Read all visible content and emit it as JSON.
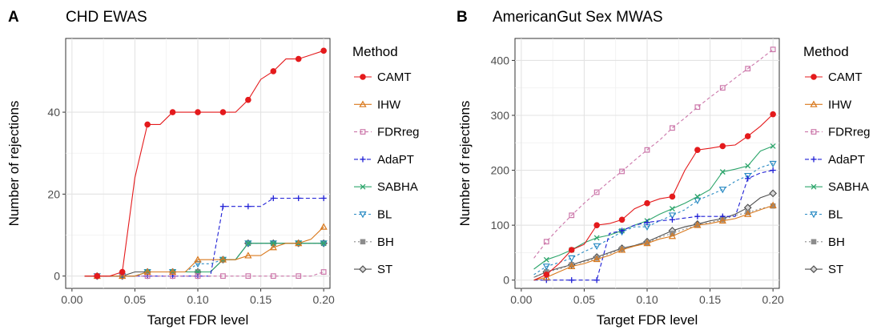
{
  "colors": {
    "CAMT": "#e41a1c",
    "IHW": "#d9791d",
    "FDRreg": "#cc77aa",
    "AdaPT": "#1f1fd6",
    "SABHA": "#2ea66c",
    "BL": "#2b8cc4",
    "BH": "#8c8c8c",
    "ST": "#505050"
  },
  "chart_data": [
    {
      "panel_letter": "A",
      "type": "line",
      "title": "CHD EWAS",
      "xlabel": "Target FDR level",
      "ylabel": "Number of rejections",
      "xlim": [
        -0.005,
        0.205
      ],
      "ylim": [
        -3,
        58
      ],
      "xticks": [
        "0.00",
        "0.05",
        "0.10",
        "0.15",
        "0.20"
      ],
      "xtick_values": [
        0,
        0.05,
        0.1,
        0.15,
        0.2
      ],
      "yticks": [
        "0",
        "20",
        "40"
      ],
      "ytick_values": [
        0,
        20,
        40
      ],
      "grid": true,
      "legend_title": "Method",
      "legend_position": "right",
      "series": [
        {
          "name": "CAMT",
          "marker": "circle",
          "dash": "",
          "x": [
            0.01,
            0.02,
            0.03,
            0.04,
            0.05,
            0.06,
            0.07,
            0.08,
            0.09,
            0.1,
            0.11,
            0.12,
            0.13,
            0.14,
            0.15,
            0.16,
            0.17,
            0.18,
            0.19,
            0.2
          ],
          "y": [
            0,
            0,
            0,
            1,
            24,
            37,
            37,
            40,
            40,
            40,
            40,
            40,
            40,
            43,
            48,
            50,
            53,
            53,
            54,
            55
          ]
        },
        {
          "name": "IHW",
          "marker": "triangle-up",
          "dash": "",
          "x": [
            0.01,
            0.02,
            0.03,
            0.04,
            0.05,
            0.06,
            0.07,
            0.08,
            0.09,
            0.1,
            0.11,
            0.12,
            0.13,
            0.14,
            0.15,
            0.16,
            0.17,
            0.18,
            0.19,
            0.2
          ],
          "y": [
            0,
            0,
            0,
            0,
            0,
            1,
            1,
            1,
            1,
            4,
            4,
            4,
            4,
            5,
            5,
            7,
            8,
            8,
            9,
            12
          ]
        },
        {
          "name": "FDRreg",
          "marker": "square-open",
          "dash": "4,3",
          "x": [
            0.01,
            0.02,
            0.03,
            0.04,
            0.05,
            0.06,
            0.07,
            0.08,
            0.09,
            0.1,
            0.11,
            0.12,
            0.13,
            0.14,
            0.15,
            0.16,
            0.17,
            0.18,
            0.19,
            0.2
          ],
          "y": [
            0,
            0,
            0,
            0,
            0,
            0,
            0,
            0,
            0,
            0,
            0,
            0,
            0,
            0,
            0,
            0,
            0,
            0,
            0,
            1
          ]
        },
        {
          "name": "AdaPT",
          "marker": "plus",
          "dash": "5,3",
          "x": [
            0.01,
            0.02,
            0.03,
            0.04,
            0.05,
            0.06,
            0.07,
            0.08,
            0.09,
            0.1,
            0.11,
            0.12,
            0.13,
            0.14,
            0.15,
            0.16,
            0.17,
            0.18,
            0.19,
            0.2
          ],
          "y": [
            0,
            0,
            0,
            0,
            0,
            0,
            0,
            0,
            0,
            0,
            0,
            17,
            17,
            17,
            17,
            19,
            19,
            19,
            19,
            19
          ]
        },
        {
          "name": "SABHA",
          "marker": "x",
          "dash": "",
          "x": [
            0.01,
            0.02,
            0.03,
            0.04,
            0.05,
            0.06,
            0.07,
            0.08,
            0.09,
            0.1,
            0.11,
            0.12,
            0.13,
            0.14,
            0.15,
            0.16,
            0.17,
            0.18,
            0.19,
            0.2
          ],
          "y": [
            0,
            0,
            0,
            0,
            0,
            1,
            1,
            1,
            1,
            1,
            1,
            4,
            4,
            8,
            8,
            8,
            8,
            8,
            8,
            8
          ]
        },
        {
          "name": "BL",
          "marker": "triangle-down",
          "dash": "3,3",
          "x": [
            0.01,
            0.02,
            0.03,
            0.04,
            0.05,
            0.06,
            0.07,
            0.08,
            0.09,
            0.1,
            0.11,
            0.12,
            0.13,
            0.14,
            0.15,
            0.16,
            0.17,
            0.18,
            0.19,
            0.2
          ],
          "y": [
            0,
            0,
            0,
            0,
            0,
            1,
            1,
            1,
            1,
            3,
            3,
            4,
            4,
            8,
            8,
            8,
            8,
            8,
            8,
            8
          ]
        },
        {
          "name": "BH",
          "marker": "square",
          "dash": "2,3",
          "x": [
            0.01,
            0.02,
            0.03,
            0.04,
            0.05,
            0.06,
            0.07,
            0.08,
            0.09,
            0.1,
            0.11,
            0.12,
            0.13,
            0.14,
            0.15,
            0.16,
            0.17,
            0.18,
            0.19,
            0.2
          ],
          "y": [
            0,
            0,
            0,
            0,
            0,
            1,
            1,
            1,
            1,
            1,
            1,
            4,
            4,
            8,
            8,
            8,
            8,
            8,
            8,
            8
          ]
        },
        {
          "name": "ST",
          "marker": "diamond",
          "dash": "",
          "x": [
            0.01,
            0.02,
            0.03,
            0.04,
            0.05,
            0.06,
            0.07,
            0.08,
            0.09,
            0.1,
            0.11,
            0.12,
            0.13,
            0.14,
            0.15,
            0.16,
            0.17,
            0.18,
            0.19,
            0.2
          ],
          "y": [
            0,
            0,
            0,
            0,
            1,
            1,
            1,
            1,
            1,
            1,
            1,
            4,
            4,
            8,
            8,
            8,
            8,
            8,
            8,
            8
          ]
        }
      ]
    },
    {
      "panel_letter": "B",
      "type": "line",
      "title": "AmericanGut Sex MWAS",
      "xlabel": "Target FDR level",
      "ylabel": "Number of rejections",
      "xlim": [
        -0.005,
        0.205
      ],
      "ylim": [
        -15,
        440
      ],
      "xticks": [
        "0.00",
        "0.05",
        "0.10",
        "0.15",
        "0.20"
      ],
      "xtick_values": [
        0,
        0.05,
        0.1,
        0.15,
        0.2
      ],
      "yticks": [
        "0",
        "100",
        "200",
        "300",
        "400"
      ],
      "ytick_values": [
        0,
        100,
        200,
        300,
        400
      ],
      "grid": true,
      "legend_title": "Method",
      "legend_position": "right",
      "series": [
        {
          "name": "CAMT",
          "marker": "circle",
          "dash": "",
          "x": [
            0.01,
            0.02,
            0.03,
            0.04,
            0.05,
            0.06,
            0.07,
            0.08,
            0.09,
            0.1,
            0.11,
            0.12,
            0.13,
            0.14,
            0.15,
            0.16,
            0.17,
            0.18,
            0.19,
            0.2
          ],
          "y": [
            0,
            10,
            30,
            55,
            65,
            100,
            103,
            110,
            130,
            140,
            148,
            152,
            200,
            237,
            240,
            244,
            246,
            262,
            280,
            302
          ]
        },
        {
          "name": "IHW",
          "marker": "triangle-up",
          "dash": "",
          "x": [
            0.01,
            0.02,
            0.03,
            0.04,
            0.05,
            0.06,
            0.07,
            0.08,
            0.09,
            0.1,
            0.11,
            0.12,
            0.13,
            0.14,
            0.15,
            0.16,
            0.17,
            0.18,
            0.19,
            0.2
          ],
          "y": [
            0,
            5,
            15,
            25,
            30,
            38,
            45,
            55,
            62,
            67,
            75,
            80,
            90,
            100,
            103,
            108,
            112,
            120,
            128,
            136
          ]
        },
        {
          "name": "FDRreg",
          "marker": "square-open",
          "dash": "4,3",
          "x": [
            0.01,
            0.02,
            0.03,
            0.04,
            0.05,
            0.06,
            0.07,
            0.08,
            0.09,
            0.1,
            0.11,
            0.12,
            0.13,
            0.14,
            0.15,
            0.16,
            0.17,
            0.18,
            0.19,
            0.2
          ],
          "y": [
            40,
            70,
            95,
            118,
            140,
            160,
            180,
            198,
            218,
            237,
            255,
            277,
            295,
            315,
            333,
            350,
            368,
            385,
            402,
            420
          ]
        },
        {
          "name": "AdaPT",
          "marker": "plus",
          "dash": "5,3",
          "x": [
            0.01,
            0.02,
            0.03,
            0.04,
            0.05,
            0.06,
            0.07,
            0.08,
            0.09,
            0.1,
            0.11,
            0.12,
            0.13,
            0.14,
            0.15,
            0.16,
            0.17,
            0.18,
            0.19,
            0.2
          ],
          "y": [
            0,
            0,
            0,
            0,
            0,
            0,
            85,
            90,
            100,
            105,
            108,
            110,
            113,
            116,
            116,
            116,
            116,
            185,
            195,
            200
          ]
        },
        {
          "name": "SABHA",
          "marker": "x",
          "dash": "",
          "x": [
            0.01,
            0.02,
            0.03,
            0.04,
            0.05,
            0.06,
            0.07,
            0.08,
            0.09,
            0.1,
            0.11,
            0.12,
            0.13,
            0.14,
            0.15,
            0.16,
            0.17,
            0.18,
            0.19,
            0.2
          ],
          "y": [
            20,
            37,
            45,
            55,
            68,
            77,
            82,
            90,
            100,
            108,
            120,
            130,
            140,
            152,
            165,
            197,
            202,
            208,
            235,
            244
          ]
        },
        {
          "name": "BL",
          "marker": "triangle-down",
          "dash": "3,3",
          "x": [
            0.01,
            0.02,
            0.03,
            0.04,
            0.05,
            0.06,
            0.07,
            0.08,
            0.09,
            0.1,
            0.11,
            0.12,
            0.13,
            0.14,
            0.15,
            0.16,
            0.17,
            0.18,
            0.19,
            0.2
          ],
          "y": [
            10,
            25,
            32,
            40,
            52,
            62,
            75,
            88,
            97,
            97,
            108,
            118,
            128,
            145,
            155,
            165,
            180,
            190,
            205,
            212
          ]
        },
        {
          "name": "BH",
          "marker": "square",
          "dash": "2,3",
          "x": [
            0.01,
            0.02,
            0.03,
            0.04,
            0.05,
            0.06,
            0.07,
            0.08,
            0.09,
            0.1,
            0.11,
            0.12,
            0.13,
            0.14,
            0.15,
            0.16,
            0.17,
            0.18,
            0.19,
            0.2
          ],
          "y": [
            5,
            15,
            20,
            28,
            33,
            40,
            48,
            57,
            62,
            68,
            78,
            85,
            93,
            100,
            105,
            110,
            118,
            123,
            130,
            135
          ]
        },
        {
          "name": "ST",
          "marker": "diamond",
          "dash": "",
          "x": [
            0.01,
            0.02,
            0.03,
            0.04,
            0.05,
            0.06,
            0.07,
            0.08,
            0.09,
            0.1,
            0.11,
            0.12,
            0.13,
            0.14,
            0.15,
            0.16,
            0.17,
            0.18,
            0.19,
            0.2
          ],
          "y": [
            5,
            15,
            22,
            28,
            35,
            42,
            50,
            58,
            63,
            70,
            80,
            90,
            97,
            102,
            108,
            112,
            120,
            132,
            150,
            158
          ]
        }
      ]
    }
  ]
}
